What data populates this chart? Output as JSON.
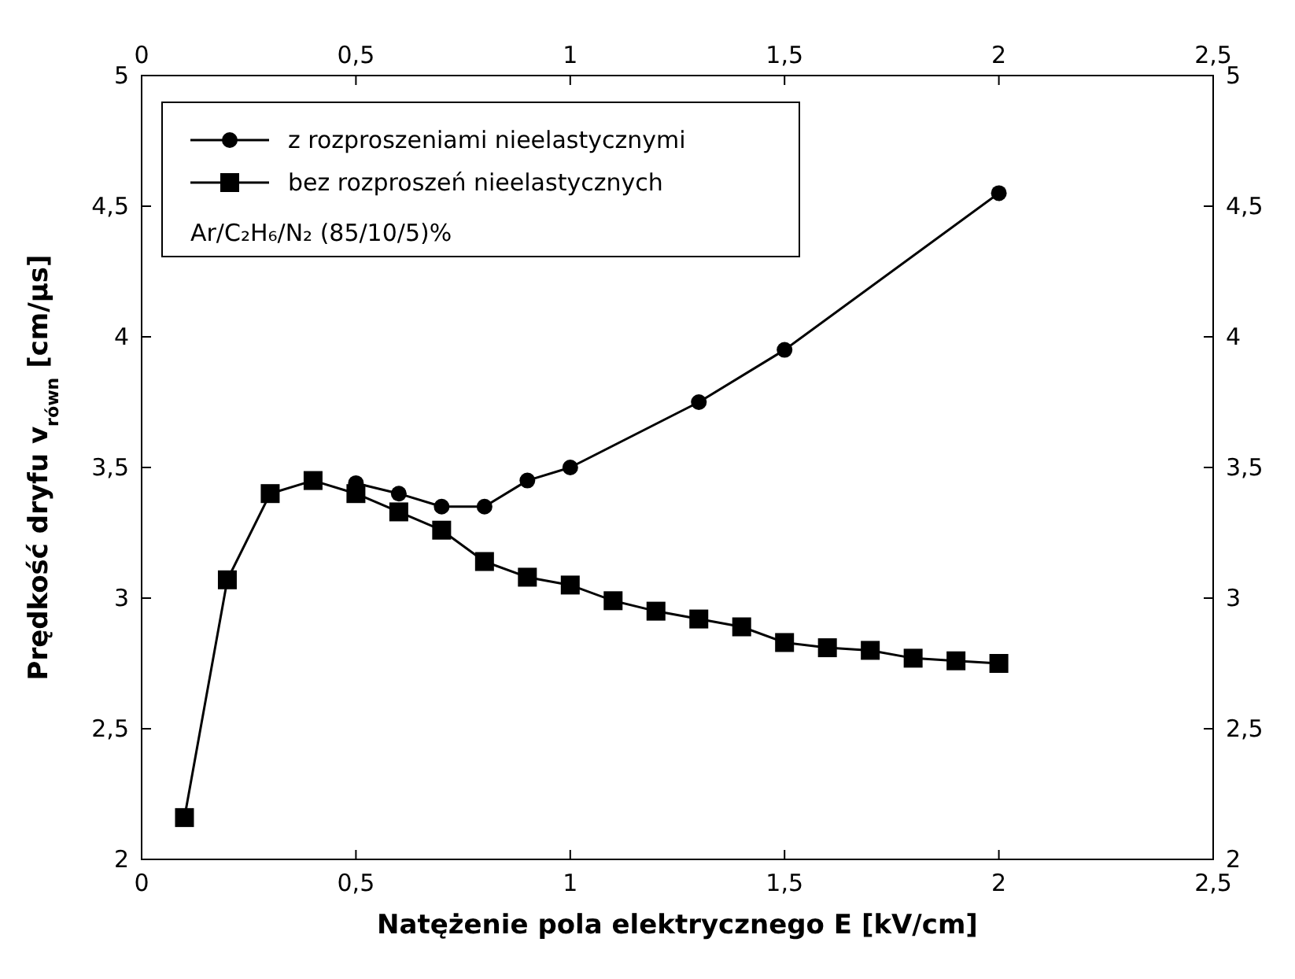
{
  "chart_data": {
    "type": "line",
    "xlabel": "Natężenie pola elektrycznego E  [kV/cm]",
    "ylabel": "Prędkość dryfu v$_{równ}$ [cm/µs]",
    "xlim": [
      0,
      2.5
    ],
    "xticks": [
      0,
      {
        "value": 0.5,
        "label": "0,5"
      },
      1,
      {
        "value": 1.5,
        "label": "1,5"
      },
      2,
      {
        "value": 2.5,
        "label": "2,5"
      }
    ],
    "x2lim": [
      0,
      2.5
    ],
    "x2ticks": [
      0,
      {
        "value": 0.5,
        "label": "0,5"
      },
      1,
      {
        "value": 1.5,
        "label": "1,5"
      },
      2,
      {
        "value": 2.5,
        "label": "2,5"
      }
    ],
    "ylim": [
      2,
      5
    ],
    "yticks": [
      2,
      {
        "value": 2.5,
        "label": "2,5"
      },
      3,
      {
        "value": 3.5,
        "label": "3,5"
      },
      4,
      {
        "value": 4.5,
        "label": "4,5"
      },
      5
    ],
    "y2lim": [
      2,
      5
    ],
    "y2ticks": [
      2,
      {
        "value": 2.5,
        "label": "2,5"
      },
      3,
      {
        "value": 3.5,
        "label": "3,5"
      },
      4,
      {
        "value": 4.5,
        "label": "4,5"
      },
      5
    ],
    "grid": false,
    "legend": "top left",
    "line_style": "solid",
    "annotations": [
      "Ar/C₂H₆/N₂ (85/10/5)%"
    ],
    "series": [
      {
        "name": "z rozproszeniami nieelastycznymi",
        "color": "#000000",
        "marker": "circle",
        "x": [
          0.5,
          0.6,
          0.7,
          0.8,
          0.9,
          1.0,
          1.3,
          1.5,
          2.0
        ],
        "values": [
          3.44,
          3.4,
          3.35,
          3.35,
          3.45,
          3.5,
          3.75,
          3.95,
          4.55
        ]
      },
      {
        "name": "bez rozproszeń nieelastycznych",
        "color": "#000000",
        "marker": "square",
        "x": [
          0.1,
          0.2,
          0.3,
          0.4,
          0.5,
          0.6,
          0.7,
          0.8,
          0.9,
          1.0,
          1.1,
          1.2,
          1.3,
          1.4,
          1.5,
          1.6,
          1.7,
          1.8,
          1.9,
          2.0
        ],
        "values": [
          2.16,
          3.07,
          3.4,
          3.45,
          3.4,
          3.33,
          3.26,
          3.14,
          3.08,
          3.05,
          2.99,
          2.95,
          2.92,
          2.89,
          2.83,
          2.81,
          2.8,
          2.77,
          2.76,
          2.75
        ]
      }
    ]
  }
}
